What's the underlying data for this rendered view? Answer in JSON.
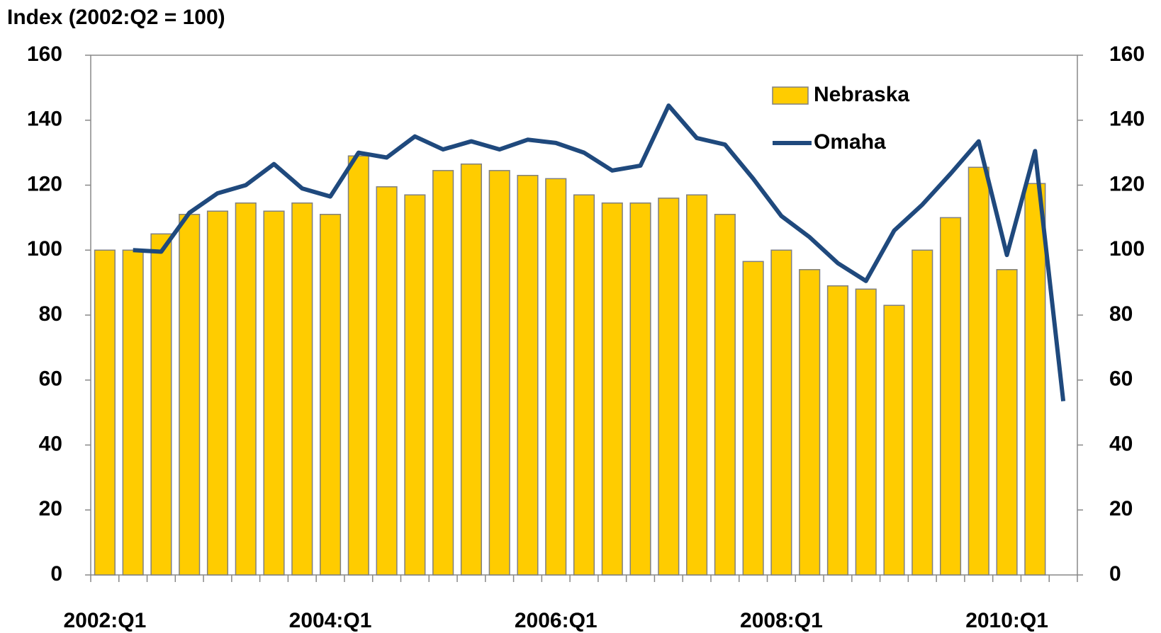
{
  "chart_data": {
    "type": "bar_line",
    "title": "Index (2002:Q2 = 100)",
    "categories": [
      "2002:Q1",
      null,
      null,
      null,
      null,
      null,
      null,
      null,
      "2004:Q1",
      null,
      null,
      null,
      null,
      null,
      null,
      null,
      "2006:Q1",
      null,
      null,
      null,
      null,
      null,
      null,
      null,
      "2008:Q1",
      null,
      null,
      null,
      null,
      null,
      null,
      null,
      "2010:Q1",
      null,
      null
    ],
    "series": [
      {
        "name": "Nebraska",
        "type": "bar",
        "color": "#ffcc00",
        "values": [
          100,
          100,
          105,
          111,
          112,
          114.5,
          112,
          114.5,
          111,
          129,
          119.5,
          117,
          124.5,
          126.5,
          124.5,
          123,
          122,
          117,
          114.5,
          114.5,
          116,
          117,
          111,
          96.5,
          100,
          94,
          89,
          88,
          83,
          100,
          110,
          125.5,
          94,
          120.5,
          null
        ]
      },
      {
        "name": "Omaha",
        "type": "line",
        "axis": "y2",
        "color": "#1f497d",
        "values": [
          null,
          100,
          99.5,
          111.5,
          117.5,
          120,
          126.5,
          119,
          116.5,
          130,
          128.5,
          135,
          131,
          133.5,
          131,
          134,
          133,
          130,
          124.5,
          126,
          144.5,
          134.5,
          132.5,
          122,
          110.5,
          104,
          96,
          90.5,
          106,
          114,
          123.5,
          133.5,
          98.5,
          130.5,
          53.5
        ]
      }
    ],
    "ylim": [
      0,
      160
    ],
    "yticks": [
      0,
      20,
      40,
      60,
      80,
      100,
      120,
      140,
      160
    ],
    "y2lim": [
      0,
      160
    ],
    "y2ticks": [
      0,
      20,
      40,
      60,
      80,
      100,
      120,
      140,
      160
    ],
    "legend": "top-right"
  }
}
